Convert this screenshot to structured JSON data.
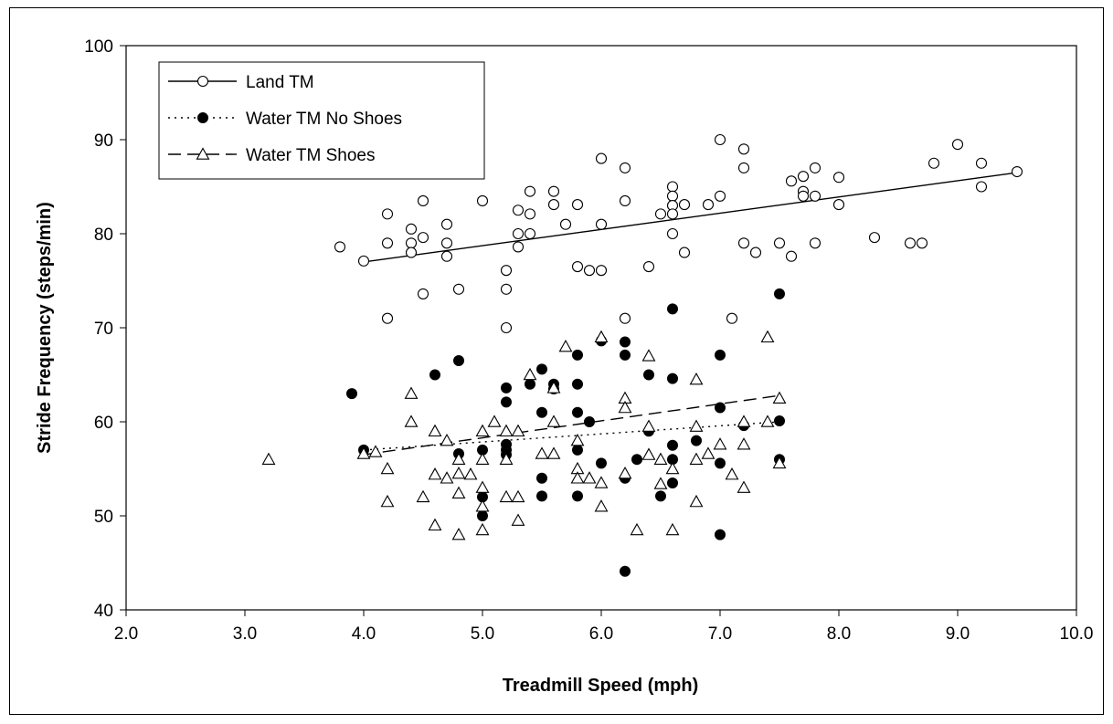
{
  "chart_data": {
    "type": "scatter",
    "title": "",
    "xlabel": "Treadmill Speed (mph)",
    "ylabel": "Stride Frequency (steps/min)",
    "xlim": [
      2.0,
      10.0
    ],
    "ylim": [
      40,
      100
    ],
    "xticks": [
      "2.0",
      "3.0",
      "4.0",
      "5.0",
      "6.0",
      "7.0",
      "8.0",
      "9.0",
      "10.0"
    ],
    "yticks": [
      "40",
      "50",
      "60",
      "70",
      "80",
      "90",
      "100"
    ],
    "grid": false,
    "legend_position": "top-left",
    "series": [
      {
        "name": "Land TM",
        "marker": "open-circle",
        "line_style": "solid",
        "trendline": [
          [
            4.0,
            77.0
          ],
          [
            9.5,
            86.5
          ]
        ],
        "points": [
          [
            3.8,
            78.6
          ],
          [
            4.0,
            77.1
          ],
          [
            4.2,
            82.1
          ],
          [
            4.2,
            79.0
          ],
          [
            4.2,
            71.0
          ],
          [
            4.4,
            80.5
          ],
          [
            4.4,
            79.0
          ],
          [
            4.4,
            78.0
          ],
          [
            4.5,
            83.5
          ],
          [
            4.5,
            79.6
          ],
          [
            4.5,
            73.6
          ],
          [
            4.7,
            81.0
          ],
          [
            4.7,
            79.0
          ],
          [
            4.7,
            77.6
          ],
          [
            4.8,
            74.1
          ],
          [
            5.0,
            83.5
          ],
          [
            5.2,
            76.1
          ],
          [
            5.2,
            74.1
          ],
          [
            5.2,
            70.0
          ],
          [
            5.3,
            82.5
          ],
          [
            5.3,
            80.0
          ],
          [
            5.3,
            78.6
          ],
          [
            5.4,
            84.5
          ],
          [
            5.4,
            82.1
          ],
          [
            5.4,
            80.0
          ],
          [
            5.6,
            84.5
          ],
          [
            5.6,
            83.1
          ],
          [
            5.7,
            81.0
          ],
          [
            5.8,
            83.1
          ],
          [
            5.8,
            76.5
          ],
          [
            5.9,
            76.1
          ],
          [
            6.0,
            88.0
          ],
          [
            6.0,
            81.0
          ],
          [
            6.0,
            76.1
          ],
          [
            6.2,
            87.0
          ],
          [
            6.2,
            83.5
          ],
          [
            6.2,
            71.0
          ],
          [
            6.4,
            76.5
          ],
          [
            6.5,
            82.1
          ],
          [
            6.6,
            85.0
          ],
          [
            6.6,
            84.0
          ],
          [
            6.6,
            83.0
          ],
          [
            6.6,
            82.1
          ],
          [
            6.6,
            80.0
          ],
          [
            6.7,
            83.1
          ],
          [
            6.7,
            78.0
          ],
          [
            6.9,
            83.1
          ],
          [
            7.0,
            90.0
          ],
          [
            7.0,
            84.0
          ],
          [
            7.1,
            71.0
          ],
          [
            7.2,
            89.0
          ],
          [
            7.2,
            87.0
          ],
          [
            7.2,
            79.0
          ],
          [
            7.3,
            78.0
          ],
          [
            7.5,
            79.0
          ],
          [
            7.6,
            85.6
          ],
          [
            7.6,
            77.6
          ],
          [
            7.7,
            86.1
          ],
          [
            7.7,
            84.5
          ],
          [
            7.7,
            84.0
          ],
          [
            7.8,
            87.0
          ],
          [
            7.8,
            84.0
          ],
          [
            7.8,
            79.0
          ],
          [
            8.0,
            86.0
          ],
          [
            8.0,
            83.1
          ],
          [
            8.3,
            79.6
          ],
          [
            8.6,
            79.0
          ],
          [
            8.7,
            79.0
          ],
          [
            8.8,
            87.5
          ],
          [
            9.0,
            89.5
          ],
          [
            9.2,
            87.5
          ],
          [
            9.2,
            85.0
          ],
          [
            9.5,
            86.6
          ]
        ]
      },
      {
        "name": "Water TM No Shoes",
        "marker": "filled-circle",
        "line_style": "dotted",
        "trendline": [
          [
            4.0,
            57.0
          ],
          [
            7.5,
            60.0
          ]
        ],
        "points": [
          [
            3.9,
            63.0
          ],
          [
            4.0,
            57.0
          ],
          [
            4.6,
            65.0
          ],
          [
            4.8,
            66.5
          ],
          [
            4.8,
            56.6
          ],
          [
            5.0,
            57.0
          ],
          [
            5.0,
            52.0
          ],
          [
            5.0,
            50.0
          ],
          [
            5.2,
            63.6
          ],
          [
            5.2,
            62.1
          ],
          [
            5.2,
            57.6
          ],
          [
            5.2,
            57.0
          ],
          [
            5.2,
            56.5
          ],
          [
            5.4,
            64.0
          ],
          [
            5.5,
            65.6
          ],
          [
            5.5,
            61.0
          ],
          [
            5.5,
            54.0
          ],
          [
            5.5,
            52.1
          ],
          [
            5.6,
            64.0
          ],
          [
            5.6,
            63.5
          ],
          [
            5.8,
            67.1
          ],
          [
            5.8,
            64.0
          ],
          [
            5.8,
            61.0
          ],
          [
            5.8,
            57.0
          ],
          [
            5.8,
            52.1
          ],
          [
            5.9,
            60.0
          ],
          [
            6.0,
            68.6
          ],
          [
            6.0,
            55.6
          ],
          [
            6.2,
            68.5
          ],
          [
            6.2,
            67.1
          ],
          [
            6.2,
            54.0
          ],
          [
            6.2,
            44.1
          ],
          [
            6.3,
            56.0
          ],
          [
            6.4,
            65.0
          ],
          [
            6.4,
            59.0
          ],
          [
            6.5,
            52.1
          ],
          [
            6.6,
            72.0
          ],
          [
            6.6,
            64.6
          ],
          [
            6.6,
            57.5
          ],
          [
            6.6,
            56.0
          ],
          [
            6.6,
            53.5
          ],
          [
            6.8,
            58.0
          ],
          [
            7.0,
            67.1
          ],
          [
            7.0,
            61.5
          ],
          [
            7.0,
            55.6
          ],
          [
            7.0,
            48.0
          ],
          [
            7.2,
            59.6
          ],
          [
            7.5,
            73.6
          ],
          [
            7.5,
            60.1
          ],
          [
            7.5,
            56.0
          ]
        ]
      },
      {
        "name": "Water TM Shoes",
        "marker": "open-triangle",
        "line_style": "dashed",
        "trendline": [
          [
            4.0,
            56.5
          ],
          [
            7.5,
            62.8
          ]
        ],
        "points": [
          [
            3.2,
            56.0
          ],
          [
            4.0,
            56.6
          ],
          [
            4.1,
            56.8
          ],
          [
            4.2,
            55.0
          ],
          [
            4.2,
            51.5
          ],
          [
            4.4,
            63.0
          ],
          [
            4.4,
            60.0
          ],
          [
            4.5,
            52.0
          ],
          [
            4.6,
            59.0
          ],
          [
            4.6,
            54.4
          ],
          [
            4.6,
            49.0
          ],
          [
            4.7,
            58.0
          ],
          [
            4.7,
            54.0
          ],
          [
            4.8,
            56.0
          ],
          [
            4.8,
            54.5
          ],
          [
            4.8,
            52.4
          ],
          [
            4.8,
            48.0
          ],
          [
            4.9,
            54.4
          ],
          [
            5.0,
            59.0
          ],
          [
            5.0,
            56.0
          ],
          [
            5.0,
            53.0
          ],
          [
            5.0,
            51.0
          ],
          [
            5.0,
            48.5
          ],
          [
            5.1,
            60.0
          ],
          [
            5.2,
            59.0
          ],
          [
            5.2,
            56.0
          ],
          [
            5.2,
            52.0
          ],
          [
            5.3,
            59.0
          ],
          [
            5.3,
            52.0
          ],
          [
            5.3,
            49.5
          ],
          [
            5.4,
            65.0
          ],
          [
            5.5,
            56.6
          ],
          [
            5.6,
            63.6
          ],
          [
            5.6,
            60.0
          ],
          [
            5.6,
            56.6
          ],
          [
            5.7,
            68.0
          ],
          [
            5.8,
            58.0
          ],
          [
            5.8,
            55.0
          ],
          [
            5.8,
            54.0
          ],
          [
            5.9,
            54.0
          ],
          [
            6.0,
            69.0
          ],
          [
            6.0,
            53.5
          ],
          [
            6.0,
            51.0
          ],
          [
            6.2,
            62.5
          ],
          [
            6.2,
            61.5
          ],
          [
            6.2,
            54.5
          ],
          [
            6.3,
            48.5
          ],
          [
            6.4,
            67.0
          ],
          [
            6.4,
            59.5
          ],
          [
            6.4,
            56.5
          ],
          [
            6.5,
            56.0
          ],
          [
            6.5,
            53.4
          ],
          [
            6.6,
            55.0
          ],
          [
            6.6,
            48.5
          ],
          [
            6.8,
            64.5
          ],
          [
            6.8,
            59.5
          ],
          [
            6.8,
            56.0
          ],
          [
            6.8,
            51.5
          ],
          [
            6.9,
            56.6
          ],
          [
            7.0,
            57.6
          ],
          [
            7.1,
            54.4
          ],
          [
            7.2,
            60.0
          ],
          [
            7.2,
            57.6
          ],
          [
            7.2,
            53.0
          ],
          [
            7.4,
            69.0
          ],
          [
            7.4,
            60.0
          ],
          [
            7.5,
            62.5
          ],
          [
            7.5,
            55.6
          ]
        ]
      }
    ]
  }
}
